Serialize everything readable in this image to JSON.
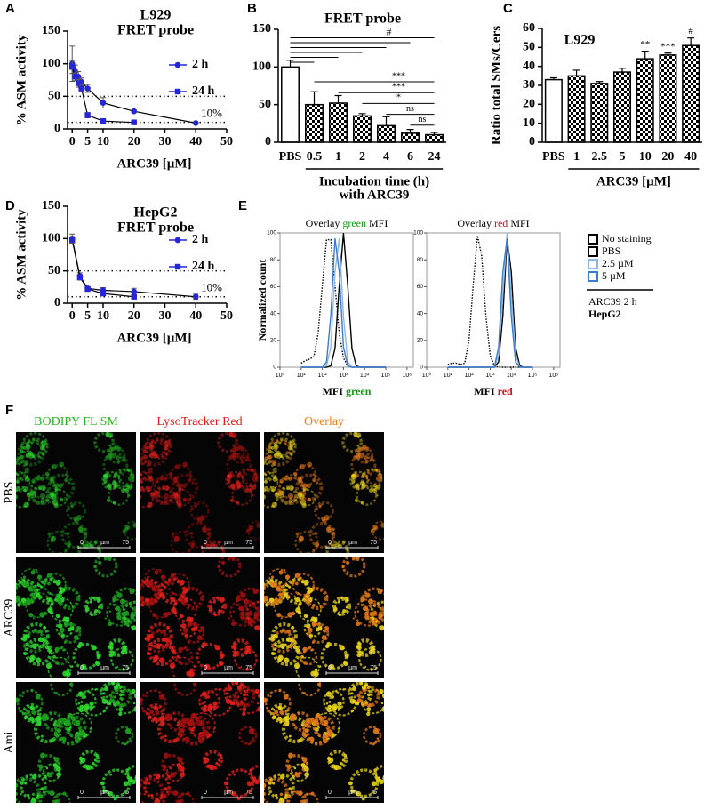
{
  "panel_labels": [
    "A",
    "B",
    "C",
    "D",
    "E",
    "F"
  ],
  "chart_data": [
    {
      "type": "line",
      "title": "L929",
      "subtitle": "FRET probe",
      "x_label": "ARC39 [µM]",
      "y_label": "% ASM activity",
      "xlim": [
        -1.5,
        50
      ],
      "xticks": [
        0,
        5,
        10,
        20,
        30,
        40,
        50
      ],
      "ylim": [
        0,
        150
      ],
      "yticks": [
        0,
        50,
        100,
        150
      ],
      "reference_lines": [
        50,
        10
      ],
      "annotation": "10%",
      "line_color": "#000000",
      "series": [
        {
          "name": "2 h",
          "color": "#2626d9",
          "marker": "circle",
          "x": [
            0,
            1,
            2,
            3,
            5,
            10,
            20,
            40
          ],
          "values": [
            100,
            88,
            80,
            72,
            62,
            40,
            27,
            9
          ],
          "errors": [
            27,
            10,
            8,
            6,
            6,
            8,
            2,
            1
          ]
        },
        {
          "name": "24 h",
          "color": "#2626d9",
          "marker": "square",
          "x": [
            0,
            1,
            2,
            3,
            5,
            10,
            20
          ],
          "values": [
            95,
            80,
            70,
            62,
            21,
            12,
            10
          ],
          "errors": [
            10,
            6,
            6,
            5,
            4,
            2,
            1
          ]
        }
      ]
    },
    {
      "type": "bar",
      "title": "FRET probe",
      "x_label": [
        "Incubation time (h)",
        "with ARC39"
      ],
      "categories": [
        "PBS",
        "0.5",
        "1",
        "2",
        "4",
        "6",
        "24"
      ],
      "values": [
        100,
        50,
        52,
        35,
        22,
        12,
        10
      ],
      "errors": [
        9,
        17,
        10,
        3,
        12,
        5,
        3
      ],
      "color": "#000000",
      "control_fill": "#ffffff",
      "ylim": [
        0,
        150
      ],
      "yticks": [
        0,
        50,
        100,
        150
      ],
      "brackets": [
        {
          "group": "PBS",
          "targets": [
            "0.5",
            "1",
            "2",
            "4",
            "6",
            "24"
          ],
          "label": "#"
        },
        {
          "group": "24",
          "targets": [
            "0.5",
            "1",
            "2",
            "4",
            "6"
          ],
          "labels": [
            "***",
            "***",
            "*",
            "ns",
            "ns"
          ]
        }
      ]
    },
    {
      "type": "bar",
      "title": "L929",
      "x_label": [
        "ARC39 [µM]"
      ],
      "y_label": "Ratio total SMs/Cers",
      "categories": [
        "PBS",
        "1",
        "2.5",
        "5",
        "10",
        "20",
        "40"
      ],
      "values": [
        33,
        35,
        31,
        37,
        44,
        46,
        51
      ],
      "errors": [
        1,
        3,
        1,
        2,
        4,
        1,
        4
      ],
      "value_annotations": [
        null,
        null,
        null,
        null,
        "**",
        "***",
        "#"
      ],
      "color": "#000000",
      "control_fill": "#ffffff",
      "ylim": [
        0,
        60
      ],
      "yticks": [
        0,
        10,
        20,
        30,
        40,
        50,
        60
      ]
    },
    {
      "type": "line",
      "title": "HepG2",
      "subtitle": "FRET probe",
      "x_label": "ARC39 [µM]",
      "y_label": "% ASM activity",
      "xlim": [
        -1.5,
        50
      ],
      "xticks": [
        0,
        5,
        10,
        20,
        30,
        40,
        50
      ],
      "ylim": [
        0,
        150
      ],
      "yticks": [
        0,
        50,
        100,
        150
      ],
      "reference_lines": [
        50,
        10
      ],
      "annotation": "10%",
      "line_color": "#000000",
      "series": [
        {
          "name": "2 h",
          "color": "#2626d9",
          "marker": "circle",
          "x": [
            0,
            2.5,
            5,
            10,
            20,
            40
          ],
          "values": [
            100,
            42,
            23,
            20,
            18,
            10
          ],
          "errors": [
            7,
            5,
            2,
            4,
            5,
            4
          ]
        },
        {
          "name": "24 h",
          "color": "#2626d9",
          "marker": "square",
          "x": [
            0,
            2.5,
            5,
            10,
            20
          ],
          "values": [
            98,
            40,
            22,
            15,
            10
          ],
          "errors": [
            5,
            4,
            2,
            3,
            3
          ]
        }
      ]
    },
    {
      "type": "density",
      "title": [
        {
          "text": "Overlay",
          "color": "#000000"
        },
        {
          "text": "green",
          "color": "#1a9a1a"
        },
        {
          "text": "MFI",
          "color": "#000000"
        }
      ],
      "x_label": [
        {
          "text": "MFI",
          "color": "#000000"
        },
        {
          "text": "green",
          "color": "#1a9a1a"
        }
      ],
      "y_label": "Normalized count",
      "log_x": true,
      "xlim": [
        1,
        2000000
      ],
      "xticks": [
        {
          "value": 1,
          "label": "10⁰"
        },
        {
          "value": 10,
          "label": "10¹"
        },
        {
          "value": 100,
          "label": "10²"
        },
        {
          "value": 1000,
          "label": "10³"
        },
        {
          "value": 10000,
          "label": "10⁴"
        },
        {
          "value": 100000,
          "label": "10⁵"
        },
        {
          "value": 1000000,
          "label": "10⁶"
        }
      ],
      "ylim": [
        0,
        100
      ],
      "yticks": [
        0,
        20,
        40,
        60,
        80,
        100
      ],
      "x": [
        10,
        16,
        25,
        40,
        63,
        100,
        158,
        251,
        398,
        631,
        1000,
        1585,
        2512,
        3981,
        6310,
        10000,
        15849,
        25119,
        39811,
        63096,
        100000
      ],
      "series": [
        {
          "name": "No staining",
          "color": "#000000",
          "style": "dotted",
          "values": [
            3,
            5,
            6,
            8,
            25,
            61,
            95,
            95,
            61,
            25,
            7,
            1,
            0,
            0,
            0,
            0,
            0,
            0,
            0,
            0,
            0
          ]
        },
        {
          "name": "PBS",
          "color": "#000000",
          "style": "solid",
          "values": [
            0,
            0,
            0,
            0,
            0,
            0,
            0,
            1,
            14,
            61,
            100,
            61,
            14,
            1,
            0,
            0,
            0,
            0,
            0,
            0,
            0
          ]
        },
        {
          "name": "2.5 µM",
          "color": "#8fb8e2",
          "style": "solid",
          "values": [
            0,
            0,
            0,
            0,
            0,
            0,
            1,
            15,
            71,
            96,
            38,
            4,
            0,
            0,
            0,
            0,
            0,
            0,
            0,
            0,
            0
          ]
        },
        {
          "name": "5 µM",
          "color": "#3d7cc9",
          "style": "solid",
          "values": [
            0,
            0,
            0,
            0,
            0,
            0,
            4,
            38,
            96,
            71,
            15,
            1,
            0,
            0,
            0,
            0,
            0,
            0,
            0,
            0,
            0
          ]
        }
      ]
    },
    {
      "type": "density",
      "title": [
        {
          "text": "Overlay",
          "color": "#000000"
        },
        {
          "text": "red",
          "color": "#c0141a"
        },
        {
          "text": "MFI",
          "color": "#000000"
        }
      ],
      "x_label": [
        {
          "text": "MFI",
          "color": "#000000"
        },
        {
          "text": "red",
          "color": "#c0141a"
        }
      ],
      "log_x": true,
      "xlim": [
        1,
        2000000
      ],
      "xticks": [
        {
          "value": 1,
          "label": "10⁰"
        },
        {
          "value": 10,
          "label": "10¹"
        },
        {
          "value": 100,
          "label": "10²"
        },
        {
          "value": 1000,
          "label": "10³"
        },
        {
          "value": 10000,
          "label": "10⁴"
        },
        {
          "value": 100000,
          "label": "10⁵"
        },
        {
          "value": 1000000,
          "label": "10⁶"
        }
      ],
      "ylim": [
        0,
        100
      ],
      "yticks": [
        0,
        20,
        40,
        60,
        80,
        100
      ],
      "x": [
        10,
        16,
        25,
        40,
        63,
        100,
        158,
        251,
        398,
        631,
        1000,
        1585,
        2512,
        3981,
        6310,
        10000,
        15849,
        25119,
        39811,
        63096,
        100000
      ],
      "series": [
        {
          "color": "#000000",
          "style": "dotted",
          "values": [
            2,
            3,
            3,
            2,
            3,
            20,
            61,
            98,
            83,
            38,
            9,
            1,
            0,
            0,
            0,
            0,
            0,
            0,
            0,
            0,
            0
          ]
        },
        {
          "color": "#000000",
          "style": "solid",
          "values": [
            0,
            0,
            0,
            0,
            0,
            0,
            0,
            0,
            0,
            0,
            0,
            0,
            4,
            38,
            96,
            71,
            15,
            1,
            0,
            0,
            0
          ]
        },
        {
          "color": "#8fb8e2",
          "style": "solid",
          "values": [
            0,
            0,
            0,
            0,
            0,
            0,
            0,
            0,
            0,
            0,
            0,
            0,
            9,
            54,
            100,
            54,
            9,
            0,
            0,
            0,
            0
          ]
        },
        {
          "color": "#3d7cc9",
          "style": "solid",
          "values": [
            0,
            0,
            0,
            0,
            0,
            0,
            0,
            0,
            0,
            0,
            0,
            0,
            15,
            71,
            96,
            38,
            4,
            0,
            0,
            0,
            0
          ]
        }
      ]
    }
  ],
  "legend_note": [
    "ARC39 2 h",
    "HepG2"
  ],
  "micrographs": {
    "columns": [
      {
        "text": "BODIPY FL SM",
        "color": "#22b422"
      },
      {
        "text": "LysoTracker Red",
        "color": "#e01b1b"
      },
      {
        "text": "Overlay",
        "color": "#f07f1a"
      }
    ],
    "rows": [
      "PBS",
      "ARC39",
      "Ami"
    ],
    "scale_bar": {
      "start": "0",
      "unit": "µm",
      "end": "75"
    }
  }
}
